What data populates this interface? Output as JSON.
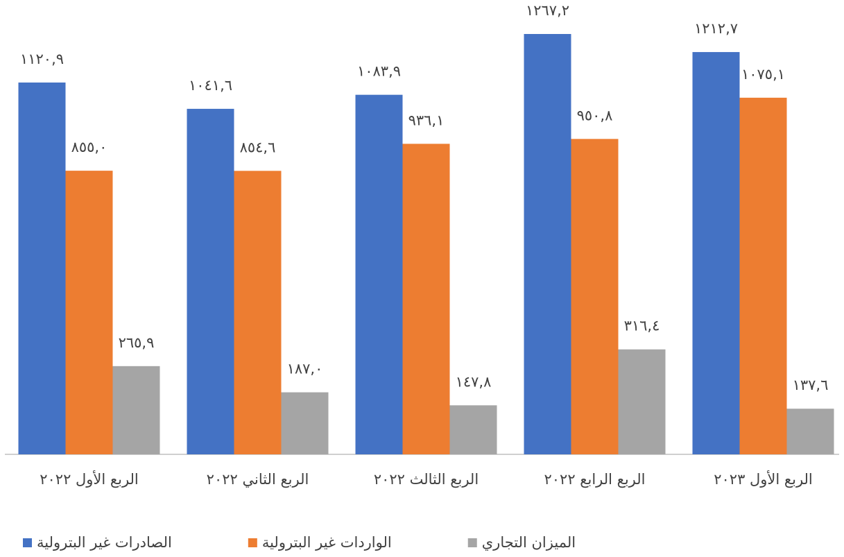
{
  "chart_data": {
    "type": "bar",
    "categories": [
      "الربع الأول ٢٠٢٢",
      "الربع الثاني ٢٠٢٢",
      "الربع الثالث ٢٠٢٢",
      "الربع الرابع ٢٠٢٢",
      "الربع الأول ٢٠٢٣"
    ],
    "series": [
      {
        "name": "الصادرات غير البترولية",
        "color": "#4472c4",
        "values": [
          1120.9,
          1041.6,
          1083.9,
          1267.2,
          1212.7
        ],
        "value_labels": [
          "١١٢٠,٩",
          "١٠٤١,٦",
          "١٠٨٣,٩",
          "١٢٦٧,٢",
          "١٢١٢,٧"
        ]
      },
      {
        "name": "الواردات غير البترولية",
        "color": "#ed7d31",
        "values": [
          855.0,
          854.6,
          936.1,
          950.8,
          1075.1
        ],
        "value_labels": [
          "٨٥٥,٠",
          "٨٥٤,٦",
          "٩٣٦,١",
          "٩٥٠,٨",
          "١٠٧٥,١"
        ]
      },
      {
        "name": "الميزان التجاري",
        "color": "#a5a5a5",
        "values": [
          265.9,
          187.0,
          147.8,
          316.4,
          137.6
        ],
        "value_labels": [
          "٢٦٥,٩",
          "١٨٧,٠",
          "١٤٧,٨",
          "٣١٦,٤",
          "١٣٧,٦"
        ]
      }
    ],
    "legend": "bottom-left"
  }
}
